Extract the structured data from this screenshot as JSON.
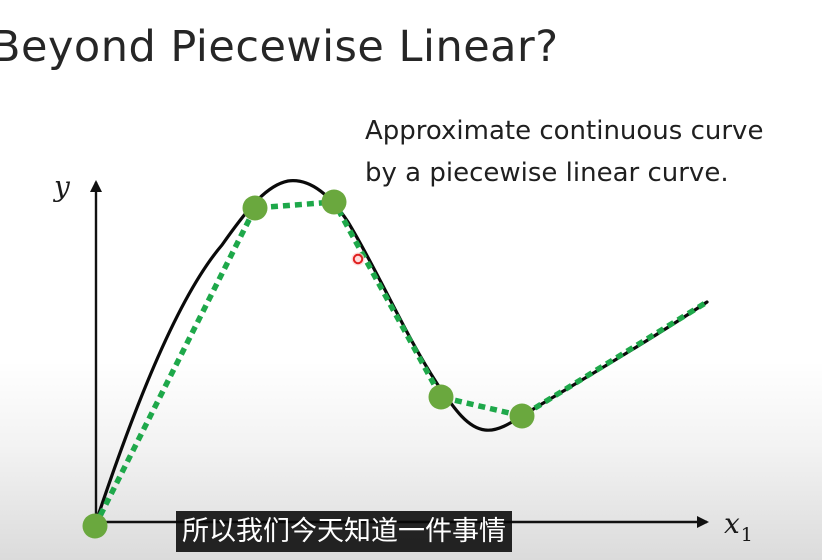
{
  "slide": {
    "title": "Beyond Piecewise Linear?",
    "annotation_lines": [
      "Approximate continuous curve",
      "by a piecewise linear curve."
    ],
    "axis_y_label": "y",
    "axis_x_label": "x",
    "axis_x_subscript": "1"
  },
  "video": {
    "subtitle": "所以我们今天知道一件事情"
  },
  "colors": {
    "curve": "#0a0a0a",
    "piecewise_line": "#1ea84a",
    "knot_points": "#6aa83e",
    "cursor_marker": "#e02020",
    "subtitle_background": "#0c0c0c"
  }
}
